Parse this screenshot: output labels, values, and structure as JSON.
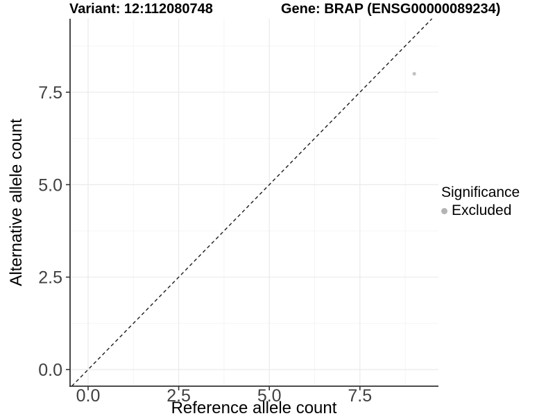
{
  "header": {
    "variant_title": "Variant: 12:112080748",
    "gene_title": "Gene: BRAP (ENSG00000089234)"
  },
  "chart_data": {
    "type": "scatter",
    "title": "Variant: 12:112080748 — Gene: BRAP (ENSG00000089234)",
    "xlabel": "Reference allele count",
    "ylabel": "Alternative allele count",
    "xlim": [
      -0.45,
      9.45
    ],
    "ylim": [
      -0.45,
      9.45
    ],
    "x_ticks": [
      0,
      2.5,
      5,
      7.5
    ],
    "x_tick_labels": [
      "0.0",
      "2.5",
      "5.0",
      "7.5"
    ],
    "y_ticks": [
      0,
      2.5,
      5,
      7.5
    ],
    "y_tick_labels": [
      "0.0",
      "2.5",
      "5.0",
      "7.5"
    ],
    "x_minor_ticks": [
      1.25,
      3.75,
      6.25,
      8.75
    ],
    "y_minor_ticks": [
      1.25,
      3.75,
      6.25,
      8.75
    ],
    "grid": "major+minor",
    "reference_line": {
      "kind": "identity",
      "slope": 1,
      "intercept": 0,
      "style": "dashed",
      "color": "#1a1a1a"
    },
    "series": [
      {
        "name": "Excluded",
        "color": "#c3c3c3",
        "point_radius": 2.6,
        "points": [
          {
            "x": 9,
            "y": 8
          }
        ]
      }
    ],
    "legend": {
      "title": "Significance",
      "position": "right",
      "entries": [
        {
          "label": "Excluded",
          "color": "#b4b4b4"
        }
      ]
    }
  },
  "theme": {
    "background": "#ffffff",
    "grid_major_color": "#eaeaea",
    "grid_minor_color": "#f5f5f5",
    "axis_line_color": "#333333",
    "tick_color": "#333333",
    "tick_label_color": "#404040",
    "text_color": "#000000"
  }
}
